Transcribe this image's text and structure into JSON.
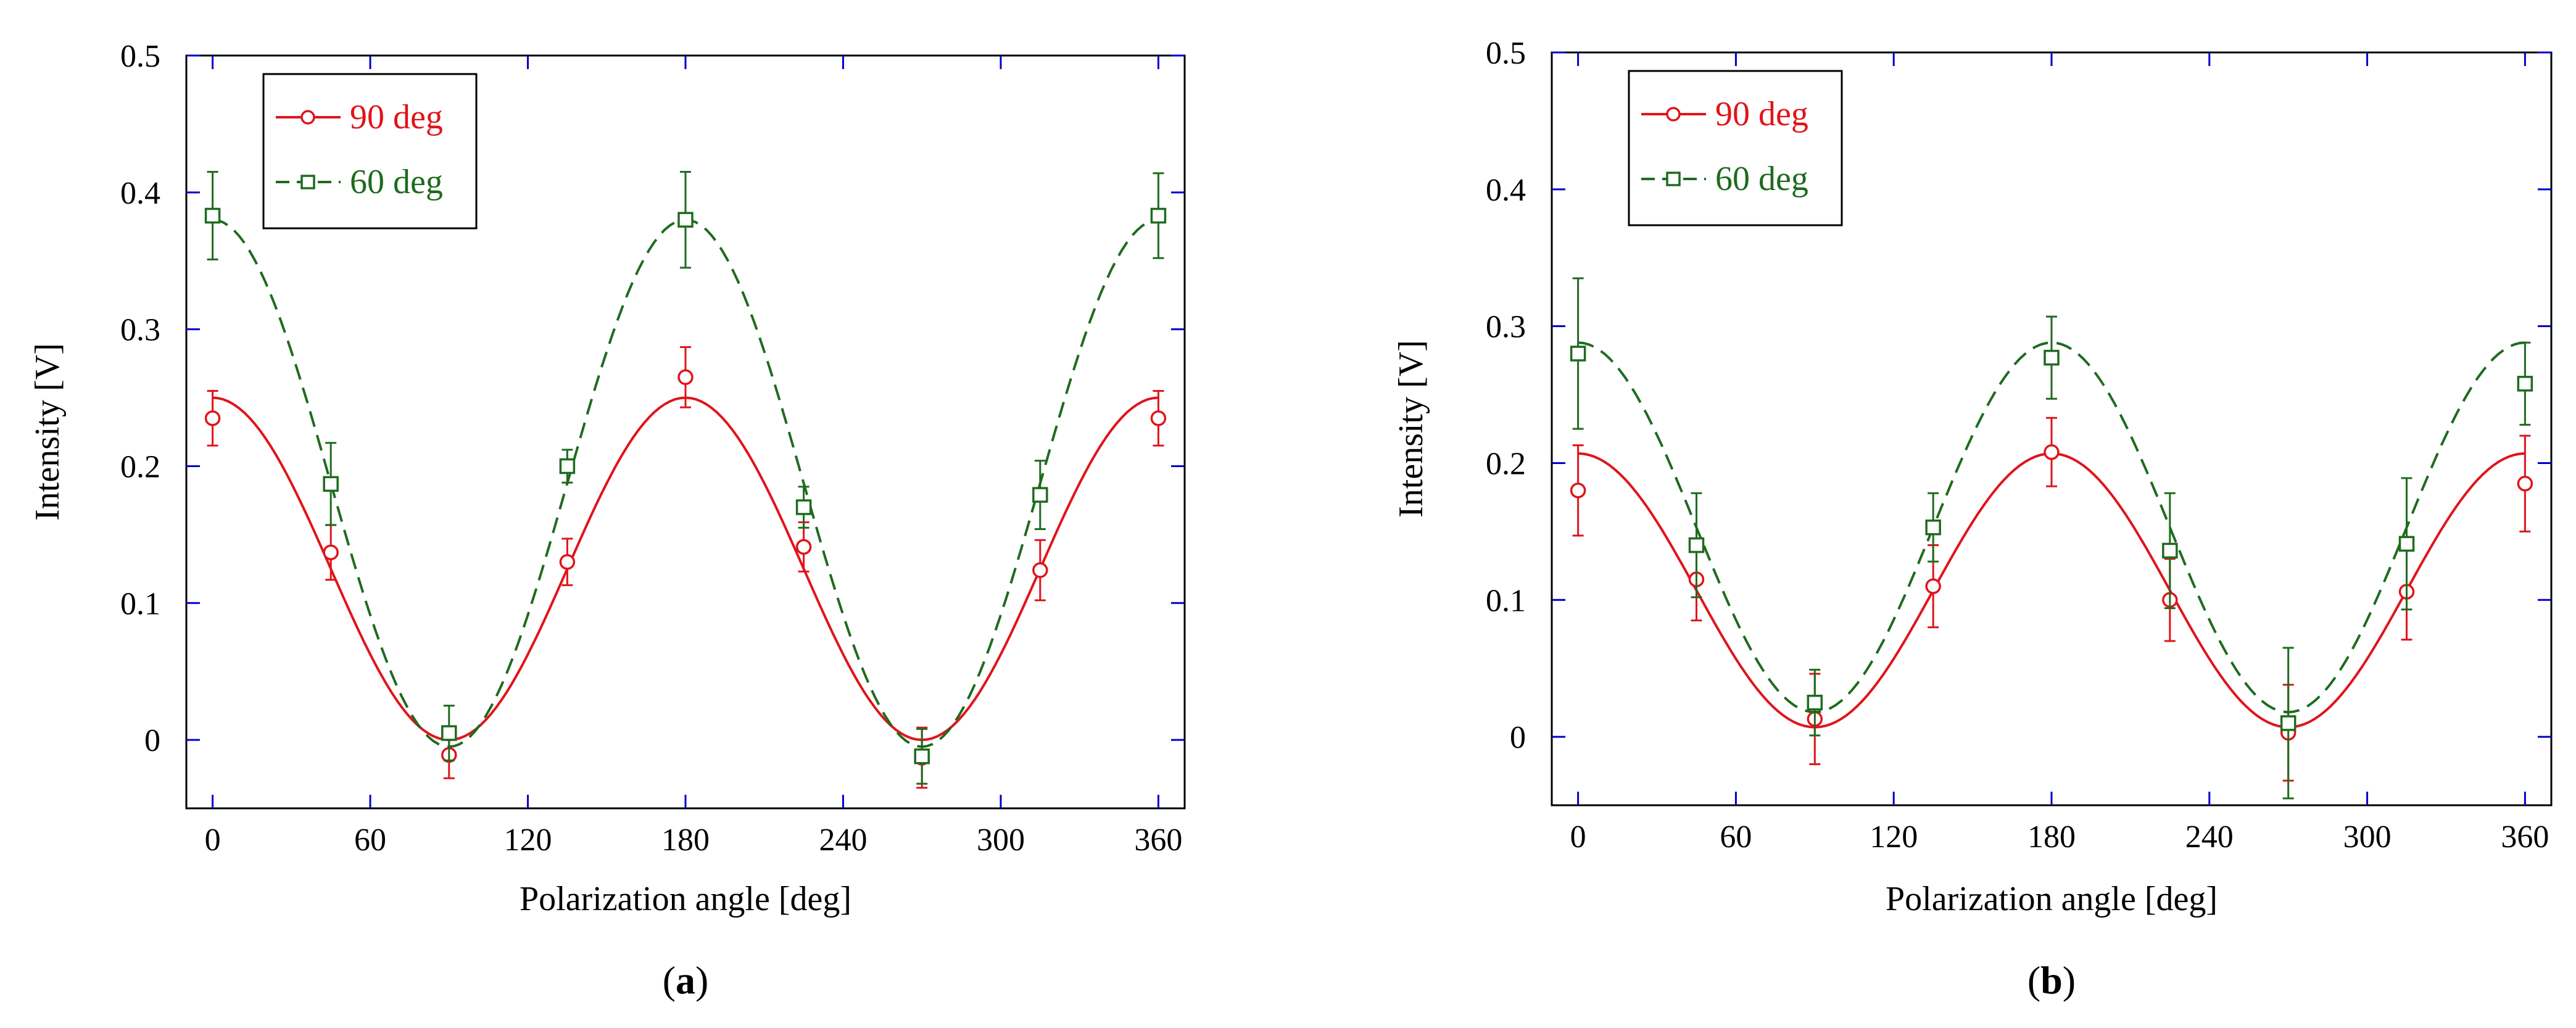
{
  "figure": {
    "panel_labels": [
      "(a)",
      "(b)"
    ]
  },
  "colors": {
    "red": "#e0141b",
    "green": "#1e6b1e",
    "axis": "#000000",
    "tick": "#0000cc",
    "legend_border": "#000000"
  },
  "chart_data": [
    {
      "type": "line",
      "panel": "a",
      "panel_label": "(a)",
      "xlabel": "Polarization angle [deg]",
      "ylabel": "Intensity [V]",
      "xlim": [
        -10,
        370
      ],
      "ylim": [
        -0.05,
        0.5
      ],
      "xticks": [
        0,
        60,
        120,
        180,
        240,
        300,
        360
      ],
      "xtick_labels": [
        "0",
        "60",
        "120",
        "180",
        "240",
        "300",
        "360"
      ],
      "yticks": [
        0,
        0.1,
        0.2,
        0.3,
        0.4,
        0.5
      ],
      "ytick_labels": [
        "0",
        "0.1",
        "0.2",
        "0.3",
        "0.4",
        "0.5"
      ],
      "legend": {
        "position": "top-left",
        "entries": [
          "90 deg",
          "60 deg"
        ]
      },
      "series": [
        {
          "name": "90 deg",
          "style": "solid",
          "marker": "circle",
          "color": "#e0141b",
          "fit": {
            "amplitude": 0.25,
            "offset": 0.0
          },
          "x": [
            0,
            45,
            90,
            135,
            180,
            225,
            270,
            315,
            360
          ],
          "y": [
            0.235,
            0.137,
            -0.011,
            0.13,
            0.265,
            0.141,
            -0.013,
            0.124,
            0.235
          ],
          "err": [
            0.02,
            0.02,
            0.017,
            0.017,
            0.022,
            0.018,
            0.022,
            0.022,
            0.02
          ]
        },
        {
          "name": "60 deg",
          "style": "dashed",
          "marker": "square",
          "color": "#1e6b1e",
          "fit": {
            "amplitude": 0.385,
            "offset": -0.005
          },
          "x": [
            0,
            45,
            90,
            135,
            180,
            225,
            270,
            315,
            360
          ],
          "y": [
            0.383,
            0.187,
            0.005,
            0.2,
            0.38,
            0.17,
            -0.012,
            0.179,
            0.383
          ],
          "err": [
            0.032,
            0.03,
            0.02,
            0.012,
            0.035,
            0.015,
            0.02,
            0.025,
            0.031
          ]
        }
      ]
    },
    {
      "type": "line",
      "panel": "b",
      "panel_label": "(b)",
      "xlabel": "Polarization angle [deg]",
      "ylabel": "Intensity [V]",
      "xlim": [
        -10,
        370
      ],
      "ylim": [
        -0.05,
        0.5
      ],
      "xticks": [
        0,
        60,
        120,
        180,
        240,
        300,
        360
      ],
      "xtick_labels": [
        "0",
        "60",
        "120",
        "180",
        "240",
        "300",
        "360"
      ],
      "yticks": [
        0,
        0.1,
        0.2,
        0.3,
        0.4,
        0.5
      ],
      "ytick_labels": [
        "0",
        "0.1",
        "0.2",
        "0.3",
        "0.4",
        "0.5"
      ],
      "legend": {
        "position": "top-left",
        "entries": [
          "90 deg",
          "60 deg"
        ]
      },
      "series": [
        {
          "name": "90 deg",
          "style": "solid",
          "marker": "circle",
          "color": "#e0141b",
          "fit": {
            "amplitude": 0.2,
            "offset": 0.007
          },
          "x": [
            0,
            45,
            90,
            135,
            180,
            225,
            270,
            315,
            360
          ],
          "y": [
            0.18,
            0.115,
            0.013,
            0.11,
            0.208,
            0.1,
            0.003,
            0.106,
            0.185
          ],
          "err": [
            0.033,
            0.03,
            0.033,
            0.03,
            0.025,
            0.03,
            0.035,
            0.035,
            0.035
          ]
        },
        {
          "name": "60 deg",
          "style": "dashed",
          "marker": "square",
          "color": "#1e6b1e",
          "fit": {
            "amplitude": 0.27,
            "offset": 0.018
          },
          "x": [
            0,
            45,
            90,
            135,
            180,
            225,
            270,
            315,
            360
          ],
          "y": [
            0.28,
            0.14,
            0.025,
            0.153,
            0.277,
            0.136,
            0.01,
            0.141,
            0.258
          ],
          "err": [
            0.055,
            0.038,
            0.024,
            0.025,
            0.03,
            0.042,
            0.055,
            0.048,
            0.03
          ]
        }
      ]
    }
  ]
}
